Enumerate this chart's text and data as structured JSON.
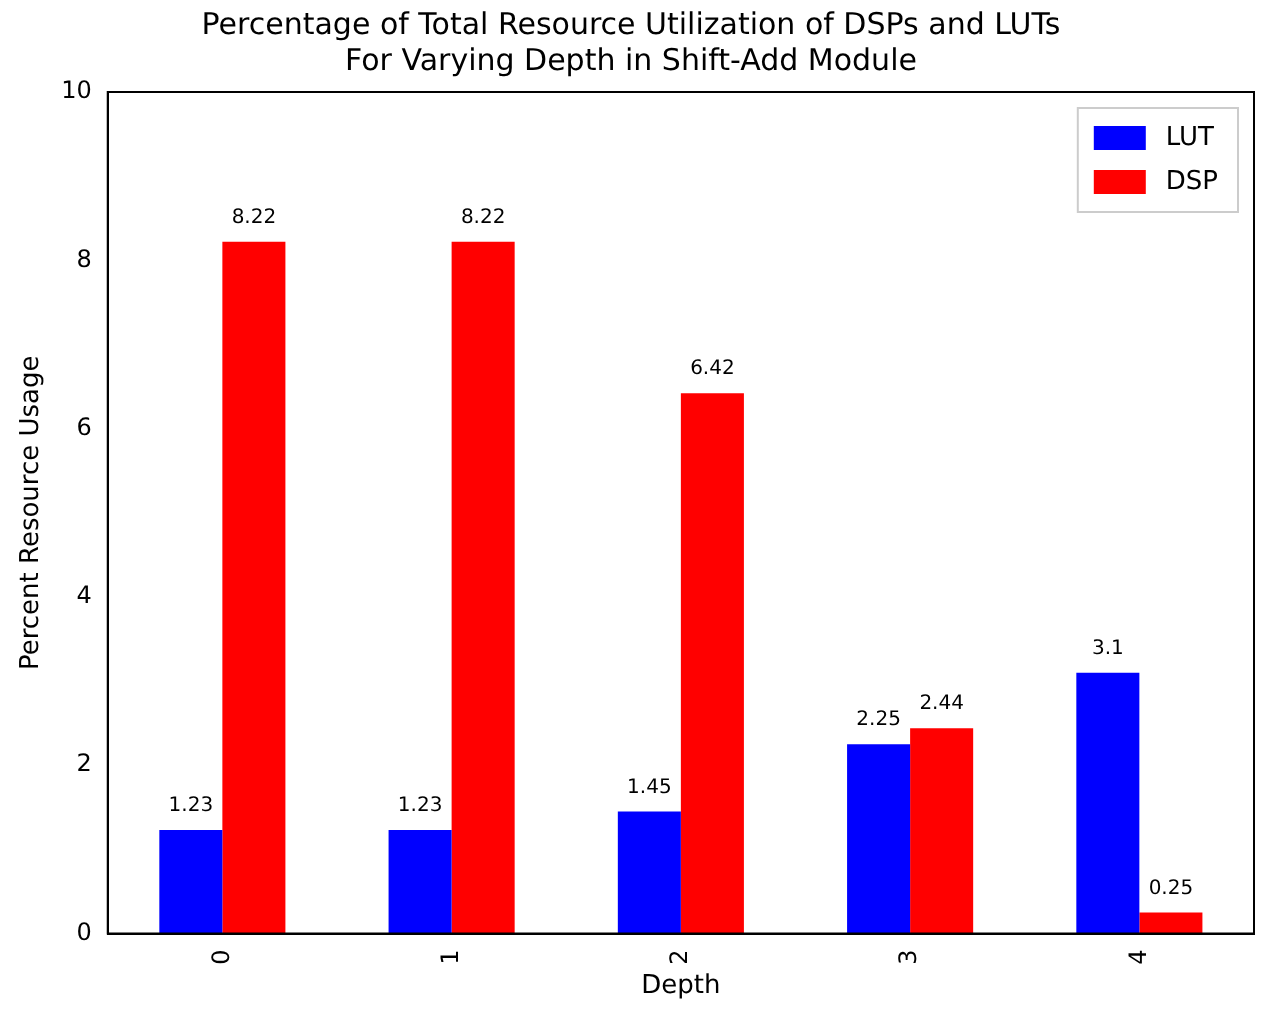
{
  "chart_data": {
    "type": "bar",
    "title": "Percentage of Total Resource Utilization of DSPs and LUTs\nFor Varying Depth in Shift-Add Module",
    "xlabel": "Depth",
    "ylabel": "Percent Resource Usage",
    "categories": [
      "0",
      "1",
      "2",
      "3",
      "4"
    ],
    "series": [
      {
        "name": "LUT",
        "color": "#0000ff",
        "values": [
          1.23,
          1.23,
          1.45,
          2.25,
          3.1
        ]
      },
      {
        "name": "DSP",
        "color": "#ff0000",
        "values": [
          8.22,
          8.22,
          6.42,
          2.44,
          0.25
        ]
      }
    ],
    "ylim": [
      0,
      10
    ],
    "yticks": [
      0,
      2,
      4,
      6,
      8,
      10
    ],
    "grid": false,
    "legend": "top right",
    "data_labels": true
  }
}
